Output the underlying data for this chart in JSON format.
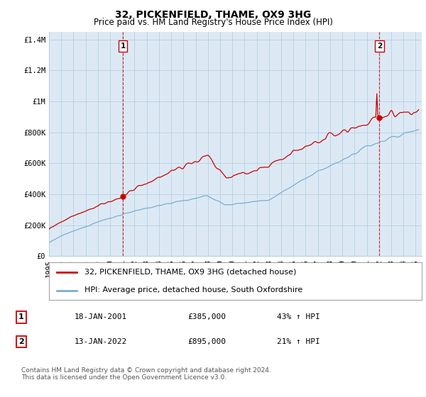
{
  "title": "32, PICKENFIELD, THAME, OX9 3HG",
  "subtitle": "Price paid vs. HM Land Registry's House Price Index (HPI)",
  "ylabel_ticks": [
    "£0",
    "£200K",
    "£400K",
    "£600K",
    "£800K",
    "£1M",
    "£1.2M",
    "£1.4M"
  ],
  "ytick_values": [
    0,
    200000,
    400000,
    600000,
    800000,
    1000000,
    1200000,
    1400000
  ],
  "ylim": [
    0,
    1450000
  ],
  "xlim_start": 1995.0,
  "xlim_end": 2025.5,
  "sale1_date": 2001.05,
  "sale1_price": 385000,
  "sale2_date": 2022.04,
  "sale2_price": 895000,
  "legend_line1": "32, PICKENFIELD, THAME, OX9 3HG (detached house)",
  "legend_line2": "HPI: Average price, detached house, South Oxfordshire",
  "annotation1_date": "18-JAN-2001",
  "annotation1_price": "£385,000",
  "annotation1_hpi": "43% ↑ HPI",
  "annotation2_date": "13-JAN-2022",
  "annotation2_price": "£895,000",
  "annotation2_hpi": "21% ↑ HPI",
  "footer": "Contains HM Land Registry data © Crown copyright and database right 2024.\nThis data is licensed under the Open Government Licence v3.0.",
  "line_color_red": "#cc0000",
  "line_color_blue": "#7aadcf",
  "bg_color": "#ffffff",
  "plot_bg_color": "#dce9f5",
  "grid_color": "#b8cfe0",
  "sale_dot_color": "#cc0000",
  "title_fontsize": 10,
  "subtitle_fontsize": 8.5,
  "tick_fontsize": 7.5,
  "legend_fontsize": 8,
  "annotation_fontsize": 8,
  "footer_fontsize": 6.5
}
